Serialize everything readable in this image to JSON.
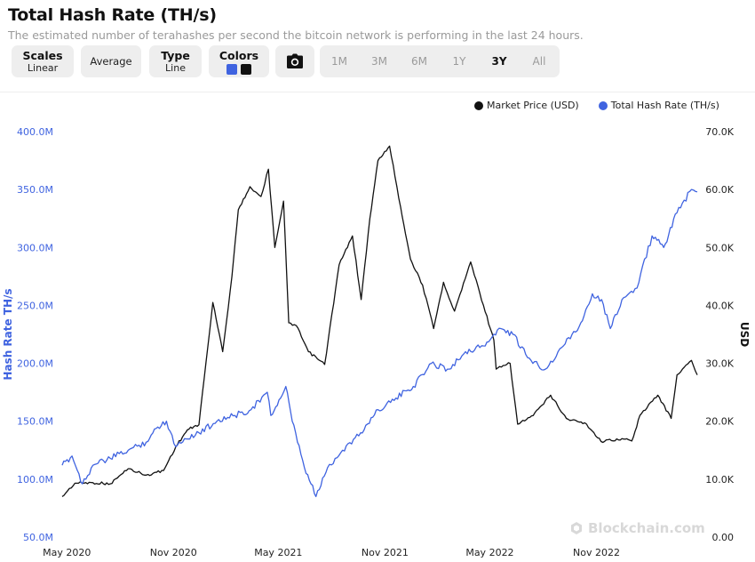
{
  "header": {
    "title": "Total Hash Rate (TH/s)",
    "subtitle": "The estimated number of terahashes per second the bitcoin network is performing in the last 24 hours."
  },
  "toolbar": {
    "scales_label": "Scales",
    "scales_value": "Linear",
    "average_label": "Average",
    "type_label": "Type",
    "type_value": "Line",
    "colors_label": "Colors",
    "ranges": [
      "1M",
      "3M",
      "6M",
      "1Y",
      "3Y",
      "All"
    ],
    "active_range": "3Y"
  },
  "colors": {
    "hash_rate": "#3f63e0",
    "market_price": "#111111",
    "left_axis_text": "#3f63e0"
  },
  "watermark": "Blockchain.com",
  "chart_data": {
    "type": "line",
    "xlabel": "",
    "ylabel_left": "Hash Rate TH/s",
    "ylabel_right": "USD",
    "x_ticks": [
      "May 2020",
      "Nov 2020",
      "May 2021",
      "Nov 2021",
      "May 2022",
      "Nov 2022"
    ],
    "y_left_ticks": [
      "50.0M",
      "100.0M",
      "150.0M",
      "200.0M",
      "250.0M",
      "300.0M",
      "350.0M",
      "400.0M"
    ],
    "y_right_ticks": [
      "0.00",
      "10.0K",
      "20.0K",
      "30.0K",
      "40.0K",
      "50.0K",
      "60.0K",
      "70.0K"
    ],
    "ylim_left": [
      50000000,
      400000000
    ],
    "ylim_right": [
      0,
      70000
    ],
    "legend_position": "top-right",
    "series": [
      {
        "name": "Market Price (USD)",
        "axis": "right",
        "points": [
          [
            "2020-04-23",
            7000
          ],
          [
            "2020-05-15",
            9300
          ],
          [
            "2020-06-15",
            9400
          ],
          [
            "2020-07-15",
            9200
          ],
          [
            "2020-08-15",
            11800
          ],
          [
            "2020-09-15",
            10700
          ],
          [
            "2020-10-15",
            11500
          ],
          [
            "2020-11-05",
            15600
          ],
          [
            "2020-11-25",
            18500
          ],
          [
            "2020-12-15",
            19400
          ],
          [
            "2021-01-08",
            40500
          ],
          [
            "2021-01-25",
            32000
          ],
          [
            "2021-02-10",
            45000
          ],
          [
            "2021-02-21",
            56500
          ],
          [
            "2021-03-13",
            60500
          ],
          [
            "2021-04-01",
            58800
          ],
          [
            "2021-04-14",
            63500
          ],
          [
            "2021-04-25",
            50000
          ],
          [
            "2021-05-10",
            58000
          ],
          [
            "2021-05-19",
            37000
          ],
          [
            "2021-06-01",
            36500
          ],
          [
            "2021-06-22",
            32000
          ],
          [
            "2021-07-20",
            29800
          ],
          [
            "2021-08-14",
            47000
          ],
          [
            "2021-09-06",
            52000
          ],
          [
            "2021-09-21",
            41000
          ],
          [
            "2021-10-06",
            55000
          ],
          [
            "2021-10-20",
            65000
          ],
          [
            "2021-11-09",
            67500
          ],
          [
            "2021-11-28",
            57000
          ],
          [
            "2021-12-15",
            48000
          ],
          [
            "2022-01-05",
            43500
          ],
          [
            "2022-01-24",
            36000
          ],
          [
            "2022-02-10",
            44000
          ],
          [
            "2022-03-01",
            39000
          ],
          [
            "2022-03-29",
            47500
          ],
          [
            "2022-04-20",
            40000
          ],
          [
            "2022-05-08",
            34000
          ],
          [
            "2022-05-12",
            29000
          ],
          [
            "2022-06-05",
            30000
          ],
          [
            "2022-06-18",
            19500
          ],
          [
            "2022-07-15",
            21000
          ],
          [
            "2022-08-14",
            24500
          ],
          [
            "2022-09-10",
            20500
          ],
          [
            "2022-10-15",
            19500
          ],
          [
            "2022-11-09",
            16500
          ],
          [
            "2022-12-15",
            17000
          ],
          [
            "2023-01-01",
            16600
          ],
          [
            "2023-01-15",
            21000
          ],
          [
            "2023-02-15",
            24500
          ],
          [
            "2023-03-10",
            20500
          ],
          [
            "2023-03-20",
            28000
          ],
          [
            "2023-04-14",
            30500
          ],
          [
            "2023-04-24",
            28000
          ]
        ]
      },
      {
        "name": "Total Hash Rate (TH/s)",
        "axis": "left",
        "points": [
          [
            "2020-04-23",
            112000000
          ],
          [
            "2020-05-10",
            120000000
          ],
          [
            "2020-05-28",
            96000000
          ],
          [
            "2020-06-15",
            112000000
          ],
          [
            "2020-07-15",
            118000000
          ],
          [
            "2020-08-15",
            125000000
          ],
          [
            "2020-09-15",
            132000000
          ],
          [
            "2020-10-05",
            145000000
          ],
          [
            "2020-10-20",
            150000000
          ],
          [
            "2020-11-05",
            128000000
          ],
          [
            "2020-11-20",
            135000000
          ],
          [
            "2020-12-15",
            140000000
          ],
          [
            "2021-01-15",
            150000000
          ],
          [
            "2021-02-15",
            155000000
          ],
          [
            "2021-03-15",
            160000000
          ],
          [
            "2021-04-12",
            175000000
          ],
          [
            "2021-04-18",
            155000000
          ],
          [
            "2021-05-05",
            170000000
          ],
          [
            "2021-05-14",
            180000000
          ],
          [
            "2021-05-25",
            150000000
          ],
          [
            "2021-06-15",
            110000000
          ],
          [
            "2021-07-05",
            85000000
          ],
          [
            "2021-07-25",
            110000000
          ],
          [
            "2021-08-20",
            125000000
          ],
          [
            "2021-09-20",
            140000000
          ],
          [
            "2021-10-20",
            160000000
          ],
          [
            "2021-11-20",
            170000000
          ],
          [
            "2021-12-20",
            180000000
          ],
          [
            "2022-01-20",
            200000000
          ],
          [
            "2022-02-20",
            195000000
          ],
          [
            "2022-03-20",
            210000000
          ],
          [
            "2022-04-20",
            215000000
          ],
          [
            "2022-05-20",
            230000000
          ],
          [
            "2022-06-10",
            225000000
          ],
          [
            "2022-07-05",
            205000000
          ],
          [
            "2022-08-05",
            195000000
          ],
          [
            "2022-09-05",
            215000000
          ],
          [
            "2022-10-05",
            235000000
          ],
          [
            "2022-10-25",
            260000000
          ],
          [
            "2022-11-10",
            255000000
          ],
          [
            "2022-11-25",
            230000000
          ],
          [
            "2022-12-15",
            255000000
          ],
          [
            "2023-01-10",
            265000000
          ],
          [
            "2023-02-05",
            310000000
          ],
          [
            "2023-02-25",
            300000000
          ],
          [
            "2023-03-20",
            330000000
          ],
          [
            "2023-04-14",
            350000000
          ],
          [
            "2023-04-24",
            348000000
          ]
        ]
      }
    ],
    "x_range": [
      "2020-04-23",
      "2023-04-24"
    ]
  }
}
